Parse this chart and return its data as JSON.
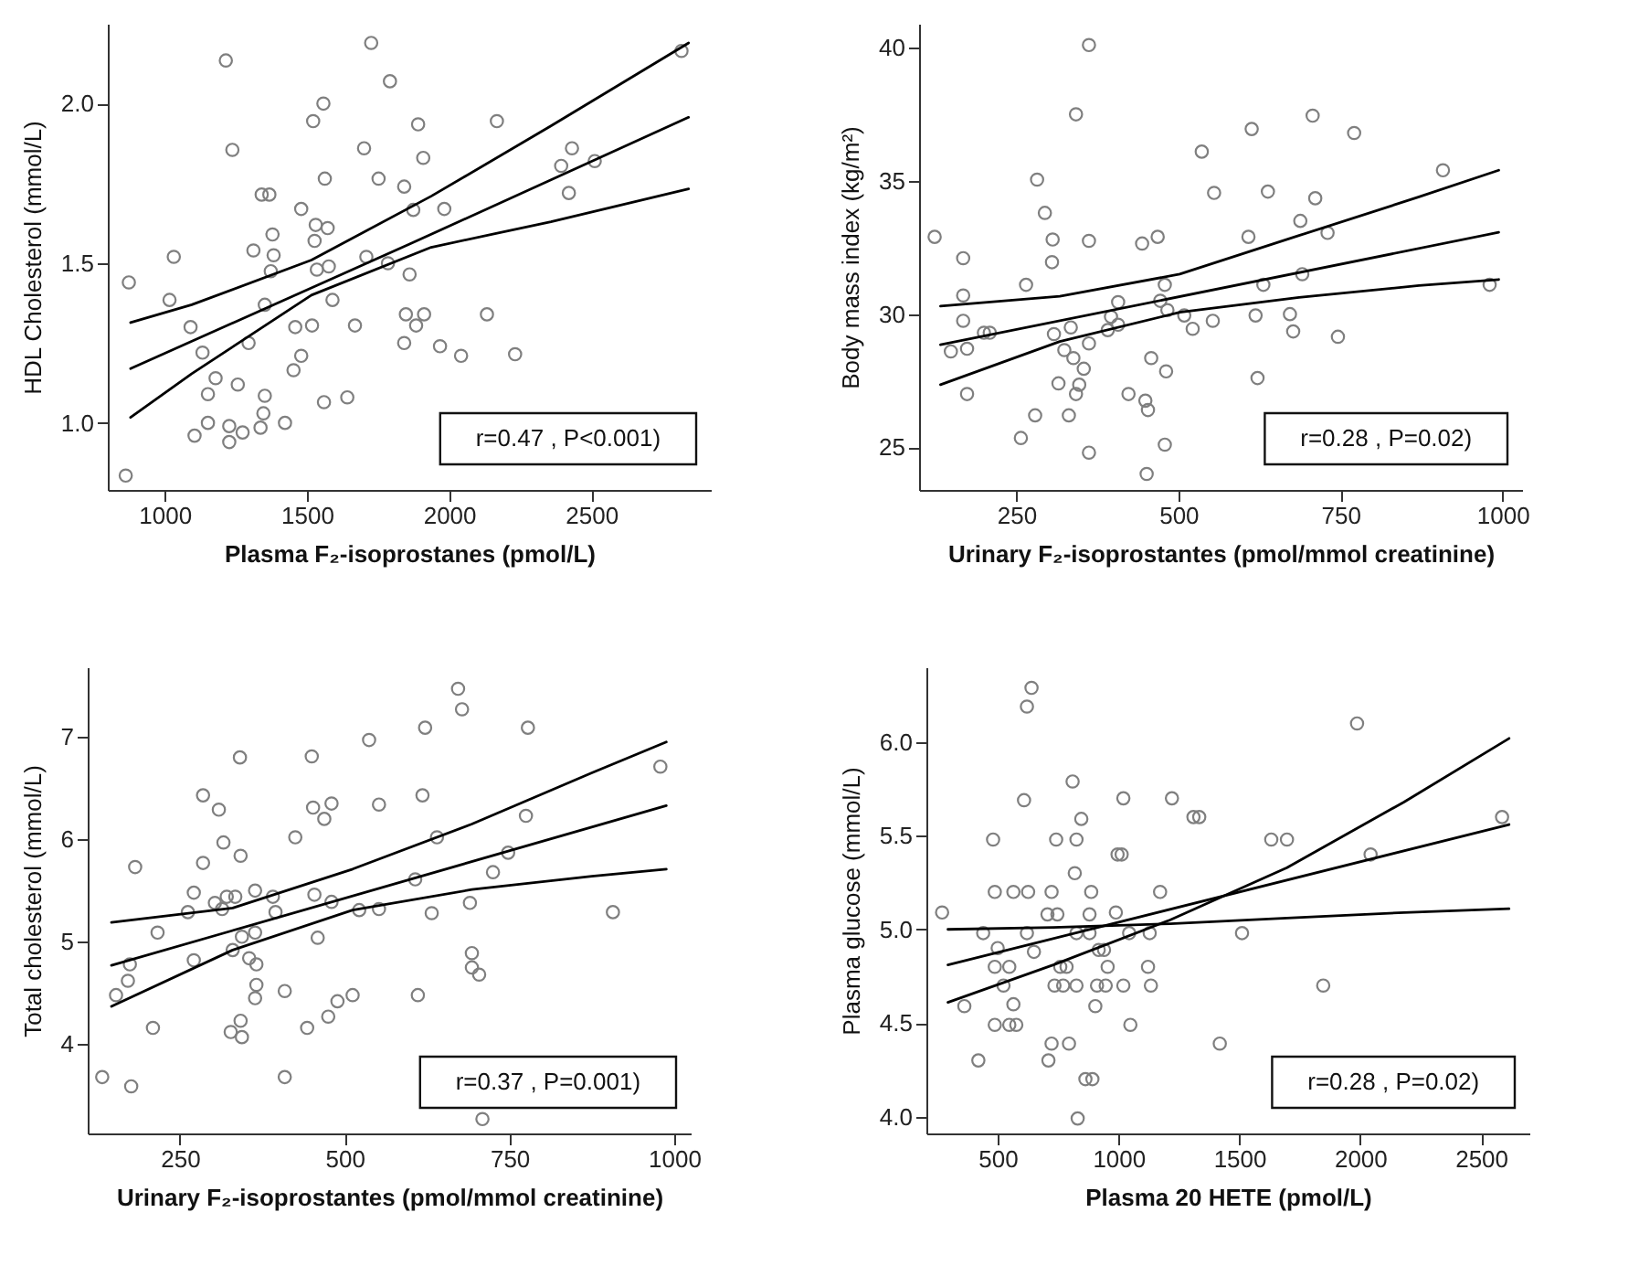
{
  "chart_data": [
    {
      "type": "scatter",
      "xlabel": "Plasma F₂-isoprostanes (pmol/L)",
      "ylabel": "HDL Cholesterol (mmol/L)",
      "xlim": [
        800,
        2920
      ],
      "ylim": [
        0.79,
        2.25
      ],
      "xticks": [
        1000,
        1500,
        2000,
        2500
      ],
      "yticks": [
        {
          "value": 1,
          "label": "1.0"
        },
        {
          "value": 1.5,
          "label": "1.5"
        },
        {
          "value": 2,
          "label": "2.0"
        }
      ],
      "annotations": [
        "r=0.47 , P<0.001)"
      ],
      "series": [
        {
          "marker": "circle",
          "color": "#7f7f7f",
          "x": [
            863,
            874,
            1017,
            1032,
            1091,
            1133,
            1152,
            1152,
            1105,
            1179,
            1215,
            1238,
            1227,
            1227,
            1257,
            1274,
            1295,
            1312,
            1341,
            1368,
            1379,
            1383,
            1373,
            1352,
            1352,
            1347,
            1337,
            1423,
            1453,
            1480,
            1459,
            1480,
            1522,
            1558,
            1527,
            1531,
            1573,
            1535,
            1577,
            1563,
            1518,
            1590,
            1560,
            1642,
            1669,
            1701,
            1709,
            1726,
            1752,
            1785,
            1792,
            1842,
            1861,
            1874,
            1848,
            1842,
            1884,
            1912,
            1891,
            1909,
            1983,
            1968,
            2042,
            2133,
            2168,
            2232,
            2394,
            2421,
            2432,
            2512,
            2817
          ],
          "values": [
            0.835,
            1.44,
            1.385,
            1.52,
            1.3,
            1.22,
            1.09,
            1.0,
            0.96,
            1.14,
            2.135,
            1.855,
            0.99,
            0.94,
            1.12,
            0.97,
            1.25,
            1.54,
            1.715,
            1.715,
            1.59,
            1.525,
            1.475,
            1.37,
            1.085,
            1.03,
            0.985,
            1.0,
            1.165,
            1.21,
            1.3,
            1.67,
            1.945,
            2.0,
            1.57,
            1.62,
            1.61,
            1.48,
            1.49,
            1.765,
            1.305,
            1.385,
            1.065,
            1.08,
            1.305,
            1.86,
            1.52,
            2.19,
            1.765,
            1.5,
            2.07,
            1.74,
            1.465,
            1.667,
            1.34,
            1.25,
            1.305,
            1.34,
            1.935,
            1.83,
            1.67,
            1.24,
            1.21,
            1.34,
            1.945,
            1.215,
            1.805,
            1.72,
            1.86,
            1.82,
            2.165
          ]
        },
        {
          "type": "line",
          "color": "#000000",
          "x": [
            880,
            1861,
            2842
          ],
          "values": [
            1.17,
            1.56,
            1.957
          ]
        },
        {
          "type": "line",
          "color": "#000000",
          "x": [
            880,
            1095,
            1516,
            1937,
            2358,
            2842
          ],
          "values": [
            1.314,
            1.37,
            1.51,
            1.71,
            1.93,
            2.19
          ]
        },
        {
          "type": "line",
          "color": "#000000",
          "x": [
            880,
            1095,
            1516,
            1937,
            2358,
            2842
          ],
          "values": [
            1.017,
            1.154,
            1.4,
            1.55,
            1.63,
            1.733
          ]
        }
      ]
    },
    {
      "type": "scatter",
      "xlabel": "Urinary F₂-isoprostantes (pmol/mmol creatinine)",
      "ylabel": "Body mass index (kg/m²)",
      "xlim": [
        100,
        1030
      ],
      "ylim": [
        23.4,
        40.9
      ],
      "xticks": [
        250,
        500,
        750,
        1000
      ],
      "yticks": [
        25,
        30,
        35,
        40
      ],
      "annotations": [
        "r=0.28 , P=0.02)"
      ],
      "series": [
        {
          "marker": "circle",
          "color": "#7f7f7f",
          "x": [
            124,
            149,
            168,
            168,
            168,
            174,
            174,
            200,
            209,
            257,
            265,
            279,
            282,
            294,
            306,
            305,
            308,
            315,
            324,
            334,
            331,
            342,
            338,
            342,
            347,
            354,
            362,
            362,
            362,
            362,
            391,
            396,
            407,
            407,
            423,
            444,
            449,
            453,
            451,
            458,
            468,
            472,
            479,
            481,
            483,
            479,
            509,
            522,
            536,
            553,
            555,
            608,
            613,
            619,
            622,
            631,
            638,
            672,
            677,
            688,
            691,
            707,
            711,
            730,
            746,
            771,
            908,
            980
          ],
          "values": [
            32.9,
            28.6,
            32.1,
            30.7,
            29.75,
            28.7,
            27.0,
            29.3,
            29.3,
            25.35,
            31.1,
            26.2,
            35.05,
            33.8,
            32.8,
            31.95,
            29.25,
            27.4,
            28.65,
            29.5,
            26.2,
            37.5,
            28.35,
            27.0,
            27.35,
            27.95,
            40.1,
            32.75,
            28.9,
            24.8,
            29.4,
            29.9,
            30.45,
            29.6,
            27.0,
            32.65,
            26.75,
            26.4,
            24.0,
            28.35,
            32.9,
            30.5,
            31.1,
            27.85,
            30.15,
            25.1,
            29.95,
            29.45,
            36.1,
            29.75,
            34.55,
            32.9,
            36.95,
            29.95,
            27.6,
            31.1,
            34.6,
            30.0,
            29.35,
            33.5,
            31.5,
            37.45,
            34.35,
            33.05,
            29.15,
            36.8,
            35.4,
            31.1
          ]
        },
        {
          "type": "line",
          "color": "#000000",
          "x": [
            133,
            994
          ],
          "values": [
            28.85,
            33.07
          ]
        },
        {
          "type": "line",
          "color": "#000000",
          "x": [
            133,
            317,
            502,
            686,
            871,
            994
          ],
          "values": [
            30.3,
            30.67,
            31.5,
            32.95,
            34.4,
            35.4
          ]
        },
        {
          "type": "line",
          "color": "#000000",
          "x": [
            133,
            317,
            502,
            686,
            871,
            994
          ],
          "values": [
            27.35,
            28.97,
            30.07,
            30.63,
            31.07,
            31.3
          ]
        }
      ]
    },
    {
      "type": "scatter",
      "xlabel": "Urinary F₂-isoprostantes (pmol/mmol creatinine)",
      "ylabel": "Total cholesterol (mmol/L)",
      "xlim": [
        110,
        1025
      ],
      "ylim": [
        3.13,
        7.68
      ],
      "xticks": [
        250,
        500,
        750,
        1000
      ],
      "yticks": [
        4,
        5,
        6,
        7
      ],
      "annotations": [
        "r=0.37 , P=0.001)"
      ],
      "series": [
        {
          "marker": "circle",
          "color": "#7f7f7f",
          "x": [
            132,
            153,
            171,
            174,
            176,
            182,
            209,
            216,
            262,
            271,
            271,
            285,
            285,
            303,
            309,
            314,
            316,
            321,
            327,
            330,
            334,
            341,
            342,
            344,
            342,
            344,
            355,
            364,
            364,
            366,
            366,
            364,
            391,
            395,
            409,
            409,
            425,
            443,
            450,
            452,
            454,
            459,
            469,
            480,
            480,
            475,
            489,
            512,
            522,
            537,
            552,
            552,
            607,
            611,
            618,
            622,
            632,
            640,
            672,
            678,
            690,
            693,
            693,
            704,
            709,
            725,
            748,
            775,
            778,
            907,
            979
          ],
          "values": [
            3.68,
            4.48,
            4.62,
            4.78,
            3.59,
            5.73,
            4.16,
            5.09,
            5.29,
            5.48,
            4.82,
            5.77,
            6.43,
            5.38,
            6.29,
            5.32,
            5.97,
            5.44,
            4.12,
            4.92,
            5.44,
            6.8,
            5.84,
            5.05,
            4.23,
            4.07,
            4.84,
            5.5,
            5.09,
            4.78,
            4.58,
            4.45,
            5.44,
            5.29,
            4.52,
            3.68,
            6.02,
            4.16,
            6.81,
            6.31,
            5.46,
            5.04,
            6.2,
            6.35,
            5.39,
            4.27,
            4.42,
            4.48,
            5.31,
            6.97,
            6.34,
            5.32,
            5.61,
            4.48,
            6.43,
            7.09,
            5.28,
            6.02,
            7.47,
            7.27,
            5.38,
            4.89,
            4.75,
            4.68,
            3.27,
            5.68,
            5.87,
            6.23,
            7.09,
            5.29,
            6.71
          ]
        },
        {
          "type": "line",
          "color": "#000000",
          "x": [
            146,
            988
          ],
          "values": [
            4.77,
            6.33
          ]
        },
        {
          "type": "line",
          "color": "#000000",
          "x": [
            146,
            330,
            512,
            693,
            875,
            988
          ],
          "values": [
            5.19,
            5.33,
            5.71,
            6.15,
            6.65,
            6.95
          ]
        },
        {
          "type": "line",
          "color": "#000000",
          "x": [
            146,
            330,
            512,
            693,
            875,
            988
          ],
          "values": [
            4.37,
            4.92,
            5.31,
            5.51,
            5.64,
            5.71
          ]
        }
      ]
    },
    {
      "type": "scatter",
      "xlabel": "Plasma 20 HETE (pmol/L)",
      "ylabel": "Plasma glucose (mmol/L)",
      "xlim": [
        205,
        2700
      ],
      "ylim": [
        3.91,
        6.4
      ],
      "xticks": [
        500,
        1000,
        1500,
        2000,
        2500
      ],
      "yticks": [
        {
          "value": 4,
          "label": "4.0"
        },
        {
          "value": 4.5,
          "label": "4.5"
        },
        {
          "value": 5,
          "label": "5.0"
        },
        {
          "value": 5.5,
          "label": "5.5"
        },
        {
          "value": 6,
          "label": "6.0"
        }
      ],
      "annotations": [
        "r=0.28 , P=0.02)"
      ],
      "series": [
        {
          "marker": "circle",
          "color": "#7f7f7f",
          "x": [
            270,
            362,
            420,
            440,
            481,
            488,
            488,
            500,
            488,
            524,
            548,
            548,
            565,
            565,
            577,
            609,
            621,
            621,
            626,
            640,
            650,
            706,
            710,
            723,
            723,
            735,
            742,
            747,
            759,
            771,
            785,
            795,
            810,
            819,
            826,
            826,
            826,
            831,
            846,
            863,
            880,
            880,
            887,
            892,
            904,
            911,
            918,
            940,
            955,
            947,
            989,
            996,
            1013,
            1020,
            1020,
            1044,
            1049,
            1122,
            1129,
            1134,
            1172,
            1221,
            1310,
            1334,
            1419,
            1511,
            1632,
            1697,
            1847,
            1987,
            2043,
            2587
          ],
          "values": [
            5.09,
            4.59,
            4.3,
            4.98,
            5.48,
            5.2,
            4.49,
            4.9,
            4.8,
            4.7,
            4.8,
            4.49,
            5.2,
            4.6,
            4.49,
            5.69,
            4.98,
            6.19,
            5.2,
            6.29,
            4.88,
            5.08,
            4.3,
            5.2,
            4.39,
            4.7,
            5.48,
            5.08,
            4.8,
            4.7,
            4.8,
            4.39,
            5.79,
            5.3,
            5.48,
            4.7,
            4.98,
            3.99,
            5.59,
            4.2,
            4.98,
            5.08,
            5.2,
            4.2,
            4.59,
            4.7,
            4.89,
            4.89,
            4.8,
            4.7,
            5.09,
            5.4,
            5.4,
            5.7,
            4.7,
            4.98,
            4.49,
            4.8,
            4.98,
            4.7,
            5.2,
            5.7,
            5.6,
            5.6,
            4.39,
            4.98,
            5.48,
            5.48,
            4.7,
            6.1,
            5.4,
            5.6
          ]
        },
        {
          "type": "line",
          "color": "#000000",
          "x": [
            294,
            2616
          ],
          "values": [
            4.81,
            5.56
          ]
        },
        {
          "type": "line",
          "color": "#000000",
          "x": [
            294,
            730,
            1213,
            1697,
            2181,
            2616
          ],
          "values": [
            4.61,
            4.81,
            5.05,
            5.33,
            5.68,
            6.02
          ]
        },
        {
          "type": "line",
          "color": "#000000",
          "x": [
            294,
            730,
            1213,
            1697,
            2181,
            2616
          ],
          "values": [
            5.0,
            5.01,
            5.03,
            5.06,
            5.09,
            5.11
          ]
        }
      ]
    }
  ]
}
